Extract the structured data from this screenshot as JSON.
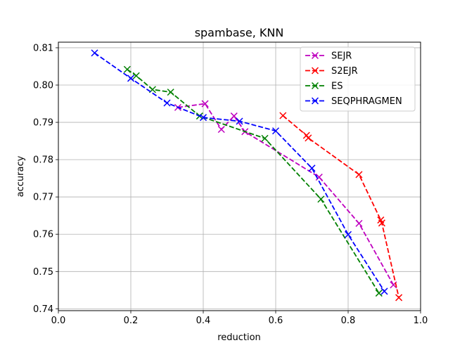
{
  "chart_data": {
    "type": "line",
    "title": "spambase, KNN",
    "xlabel": "reduction",
    "ylabel": "accuracy",
    "xlim": [
      0.0,
      1.0
    ],
    "ylim": [
      0.7395,
      0.8115
    ],
    "xticks": [
      0.0,
      0.2,
      0.4,
      0.6,
      0.8,
      1.0
    ],
    "xtick_labels": [
      "0.0",
      "0.2",
      "0.4",
      "0.6",
      "0.8",
      "1.0"
    ],
    "yticks": [
      0.74,
      0.75,
      0.76,
      0.77,
      0.78,
      0.79,
      0.8,
      0.81
    ],
    "ytick_labels": [
      "0.74",
      "0.75",
      "0.76",
      "0.77",
      "0.78",
      "0.79",
      "0.80",
      "0.81"
    ],
    "grid": true,
    "legend_position": "top-right",
    "series": [
      {
        "name": "SEJR",
        "color": "#bf00bf",
        "marker": "x",
        "linestyle": "dashed",
        "x": [
          0.33,
          0.405,
          0.45,
          0.485,
          0.515,
          0.72,
          0.83,
          0.925
        ],
        "y": [
          0.794,
          0.795,
          0.7881,
          0.7917,
          0.7875,
          0.7753,
          0.7629,
          0.7464
        ]
      },
      {
        "name": "S2EJR",
        "color": "#ff0000",
        "marker": "x",
        "linestyle": "dashed",
        "x": [
          0.62,
          0.685,
          0.69,
          0.83,
          0.89,
          0.893,
          0.94
        ],
        "y": [
          0.7918,
          0.7865,
          0.7858,
          0.776,
          0.7638,
          0.763,
          0.743
        ]
      },
      {
        "name": "ES",
        "color": "#008000",
        "marker": "x",
        "linestyle": "dashed",
        "x": [
          0.19,
          0.215,
          0.26,
          0.31,
          0.39,
          0.57,
          0.725,
          0.885
        ],
        "y": [
          0.8042,
          0.8025,
          0.7988,
          0.7981,
          0.7917,
          0.7857,
          0.7694,
          0.7442
        ]
      },
      {
        "name": "SEQPHRAGMEN",
        "color": "#0000ff",
        "marker": "x",
        "linestyle": "dashed",
        "x": [
          0.1,
          0.2,
          0.3,
          0.4,
          0.5,
          0.6,
          0.7,
          0.8,
          0.9
        ],
        "y": [
          0.8086,
          0.8018,
          0.7952,
          0.7913,
          0.7903,
          0.7877,
          0.7777,
          0.7599,
          0.7447
        ]
      }
    ]
  }
}
